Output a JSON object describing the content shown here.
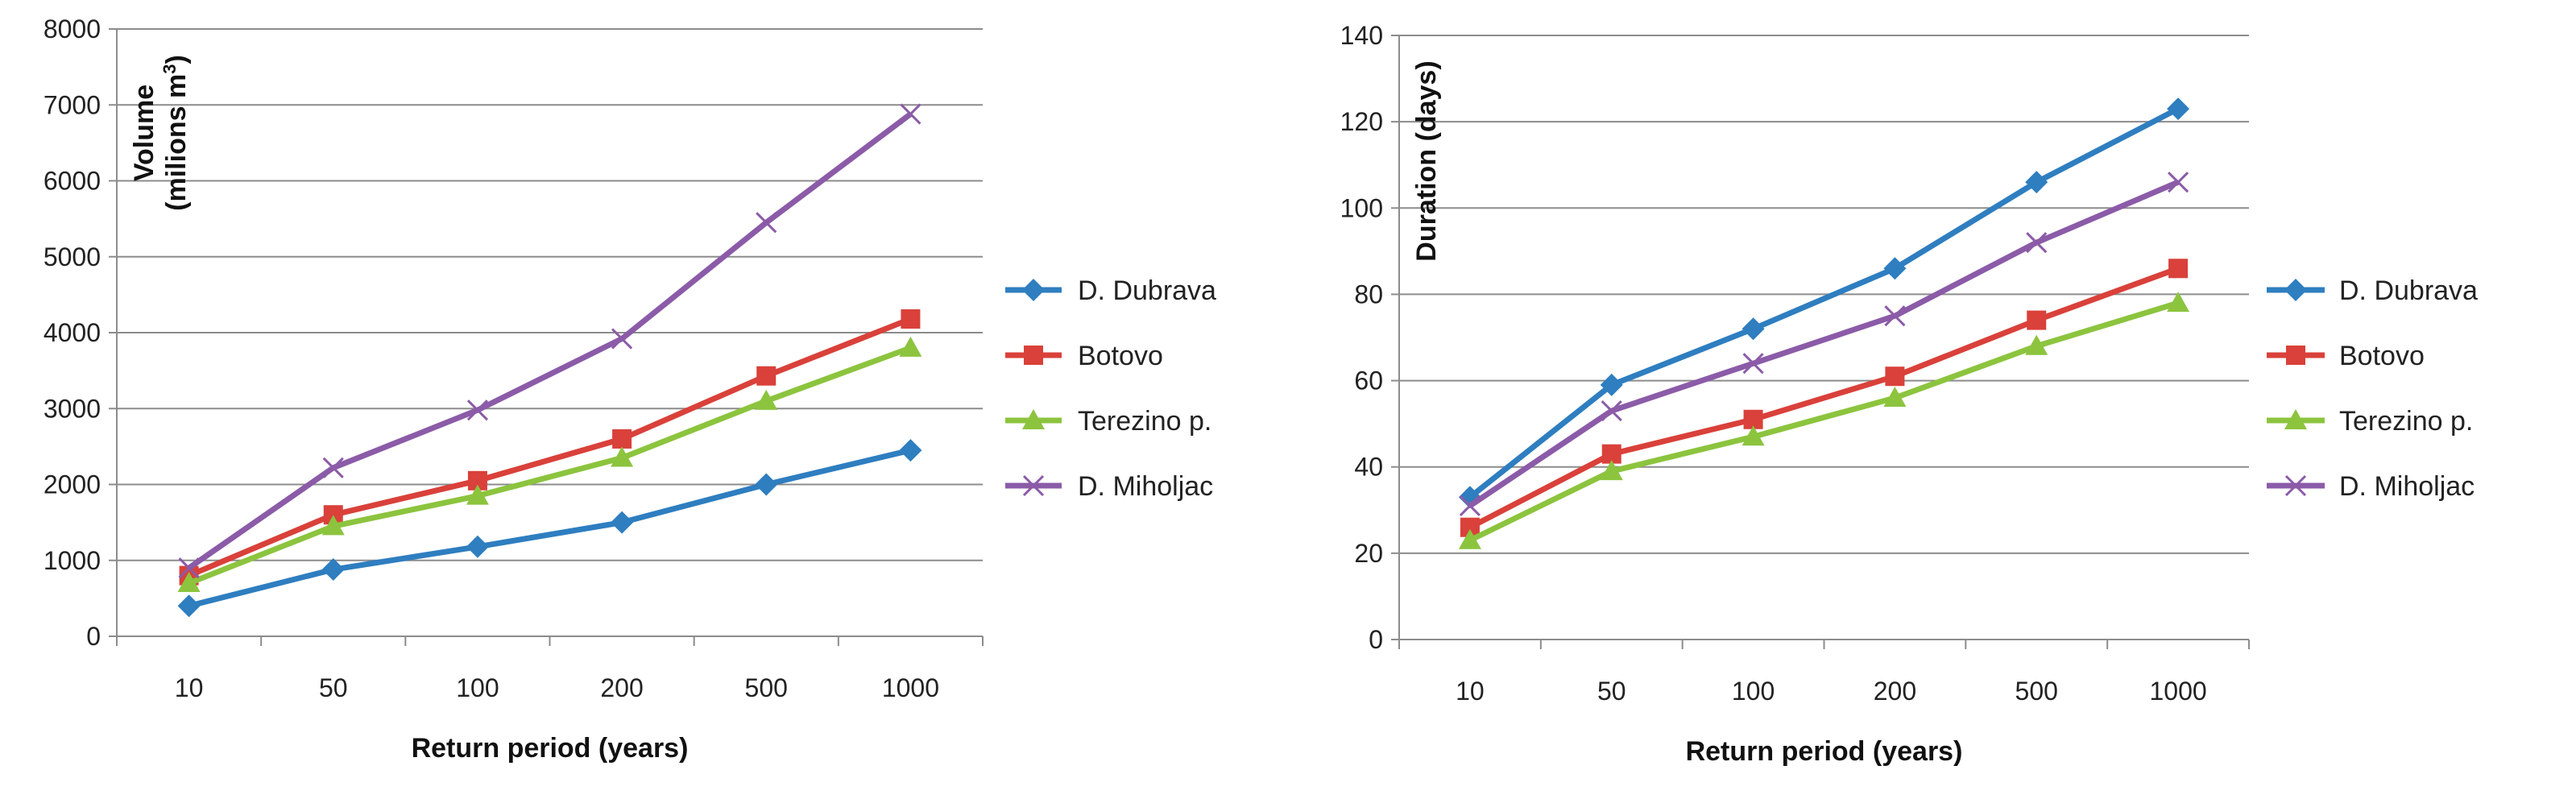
{
  "chart_data": [
    {
      "type": "line",
      "categories": [
        "10",
        "50",
        "100",
        "200",
        "500",
        "1000"
      ],
      "series": [
        {
          "name": "D. Dubrava",
          "color": "#2E7EC0",
          "marker": "diamond",
          "values": [
            400,
            880,
            1180,
            1500,
            2000,
            2450
          ]
        },
        {
          "name": "Botovo",
          "color": "#D9413A",
          "marker": "square",
          "values": [
            800,
            1600,
            2050,
            2600,
            3430,
            4180
          ]
        },
        {
          "name": "Terezino p.",
          "color": "#8CC43E",
          "marker": "triangle",
          "values": [
            700,
            1450,
            1850,
            2350,
            3100,
            3800
          ]
        },
        {
          "name": "D. Miholjac",
          "color": "#8B5BA8",
          "marker": "x",
          "values": [
            900,
            2220,
            2980,
            3920,
            5450,
            6880
          ]
        }
      ],
      "xlabel": "Return period (years)",
      "ylabel_line1": "Volume",
      "ylabel_line2": "(milions m",
      "ylabel_sup": "3",
      "ylabel_end": ")",
      "ylim": [
        0,
        8000
      ],
      "yticks": [
        "0",
        "1000",
        "2000",
        "3000",
        "4000",
        "5000",
        "6000",
        "7000",
        "8000"
      ],
      "grid": true,
      "legend": "right"
    },
    {
      "type": "line",
      "categories": [
        "10",
        "50",
        "100",
        "200",
        "500",
        "1000"
      ],
      "series": [
        {
          "name": "D. Dubrava",
          "color": "#2E7EC0",
          "marker": "diamond",
          "values": [
            33,
            59,
            72,
            86,
            106,
            123
          ]
        },
        {
          "name": "Botovo",
          "color": "#D9413A",
          "marker": "square",
          "values": [
            26,
            43,
            51,
            61,
            74,
            86
          ]
        },
        {
          "name": "Terezino p.",
          "color": "#8CC43E",
          "marker": "triangle",
          "values": [
            23,
            39,
            47,
            56,
            68,
            78
          ]
        },
        {
          "name": "D. Miholjac",
          "color": "#8B5BA8",
          "marker": "x",
          "values": [
            31,
            53,
            64,
            75,
            92,
            106
          ]
        }
      ],
      "xlabel": "Return period (years)",
      "ylabel": "Duration (days)",
      "ylim": [
        0,
        140
      ],
      "yticks": [
        "0",
        "20",
        "40",
        "60",
        "80",
        "100",
        "120",
        "140"
      ],
      "grid": true,
      "legend": "right"
    }
  ]
}
